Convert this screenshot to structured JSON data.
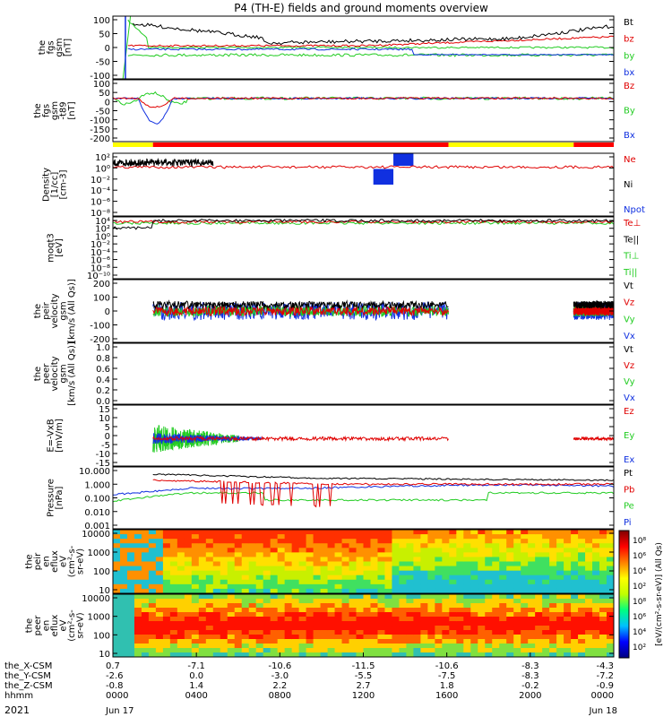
{
  "title": "P4 (TH-E) fields and ground moments overview",
  "year": "2021",
  "colors": {
    "black": "#000000",
    "red": "#e00000",
    "green": "#22cc22",
    "blue": "#1030e0",
    "yellow": "#ffff00",
    "barred": "#ff0000"
  },
  "panels": [
    {
      "ylabel": [
        "the",
        "fgs",
        "gsm",
        "[nT]"
      ],
      "ticks": [
        "100",
        "50",
        "0",
        "-50",
        "-100"
      ],
      "legend": [
        {
          "text": "Bt",
          "color": "#000000"
        },
        {
          "text": "bz",
          "color": "#e00000"
        },
        {
          "text": "by",
          "color": "#22cc22"
        },
        {
          "text": "bx",
          "color": "#1030e0"
        }
      ]
    },
    {
      "ylabel": [
        "the",
        "fgs",
        "gsm",
        "-t89",
        "[nT]"
      ],
      "ticks": [
        "100",
        "50",
        "0",
        "-50",
        "-100",
        "-150",
        "-200"
      ],
      "legend": [
        {
          "text": "Bz",
          "color": "#e00000"
        },
        {
          "text": "By",
          "color": "#22cc22"
        },
        {
          "text": "Bx",
          "color": "#1030e0"
        }
      ]
    },
    {
      "ylabel": [
        "Density",
        "[1/cc]",
        "[cm-3]"
      ],
      "ticks": [
        "10²",
        "10⁰",
        "10⁻²",
        "10⁻⁴",
        "10⁻⁶",
        "10⁻⁸"
      ],
      "legend": [
        {
          "text": "Ne",
          "color": "#e00000"
        },
        {
          "text": "Ni",
          "color": "#000000"
        },
        {
          "text": "Npot",
          "color": "#1030e0"
        }
      ]
    },
    {
      "ylabel": [
        "moqt3",
        "[eV]"
      ],
      "ticks": [
        "10⁴",
        "10²",
        "10⁰",
        "10⁻²",
        "10⁻⁴",
        "10⁻⁶",
        "10⁻⁸",
        "10⁻¹⁰"
      ],
      "legend": [
        {
          "text": "Te⊥",
          "color": "#e00000"
        },
        {
          "text": "Te||",
          "color": "#000000"
        },
        {
          "text": "Ti⊥",
          "color": "#22cc22"
        },
        {
          "text": "Ti||",
          "color": "#22cc22"
        }
      ]
    },
    {
      "ylabel": [
        "the",
        "peir",
        "velocity",
        "gsm",
        "[km/s (All Qs)]"
      ],
      "ticks": [
        "200",
        "100",
        "0",
        "-100",
        "-200"
      ],
      "legend": [
        {
          "text": "Vt",
          "color": "#000000"
        },
        {
          "text": "Vz",
          "color": "#e00000"
        },
        {
          "text": "Vy",
          "color": "#22cc22"
        },
        {
          "text": "Vx",
          "color": "#1030e0"
        }
      ]
    },
    {
      "ylabel": [
        "the",
        "peer",
        "velocity",
        "gsm",
        "[km/s (All Qs)]"
      ],
      "ticks": [
        "1.0",
        "0.8",
        "0.6",
        "0.4",
        "0.2",
        "0.0"
      ],
      "legend": [
        {
          "text": "Vt",
          "color": "#000000"
        },
        {
          "text": "Vz",
          "color": "#e00000"
        },
        {
          "text": "Vy",
          "color": "#22cc22"
        },
        {
          "text": "Vx",
          "color": "#1030e0"
        }
      ]
    },
    {
      "ylabel": [
        "E=-VxB",
        "[mV/m]"
      ],
      "ticks": [
        "15",
        "10",
        "5",
        "0",
        "-5",
        "-10",
        "-15"
      ],
      "legend": [
        {
          "text": "Ez",
          "color": "#e00000"
        },
        {
          "text": "Ey",
          "color": "#22cc22"
        },
        {
          "text": "Ex",
          "color": "#1030e0"
        }
      ]
    },
    {
      "ylabel": [
        "Pressure",
        "[nPa]"
      ],
      "ticks": [
        "10.000",
        "1.000",
        "0.100",
        "0.010",
        "0.001"
      ],
      "legend": [
        {
          "text": "Pt",
          "color": "#000000"
        },
        {
          "text": "Pb",
          "color": "#e00000"
        },
        {
          "text": "Pe",
          "color": "#22cc22"
        },
        {
          "text": "Pi",
          "color": "#1030e0"
        }
      ]
    },
    {
      "ylabel": [
        "the",
        "peir",
        "en",
        "eflux",
        "eV",
        "(cm²-s-",
        "sr-eV)"
      ],
      "ticks": [
        "10000",
        "1000",
        "100",
        "10"
      ]
    },
    {
      "ylabel": [
        "the",
        "peer",
        "en",
        "eflux",
        "eV",
        "(cm²-s-",
        "sr-eV)"
      ],
      "ticks": [
        "10000",
        "1000",
        "100",
        "10"
      ]
    }
  ],
  "colorbar": {
    "label": "[eV/(cm²-s-sr-eV)] (All Qs)",
    "ticks": [
      "10⁸",
      "10⁶",
      "10⁴",
      "10²",
      "10⁸",
      "10⁶",
      "10⁴",
      "10²"
    ]
  },
  "xaxis": {
    "rows": [
      {
        "label": "the_X-CSM",
        "values": [
          "0.7",
          "-7.1",
          "-10.6",
          "-11.5",
          "-10.6",
          "-8.3",
          "-4.3"
        ]
      },
      {
        "label": "the_Y-CSM",
        "values": [
          "-2.6",
          "0.0",
          "-3.0",
          "-5.5",
          "-7.5",
          "-8.3",
          "-7.2"
        ]
      },
      {
        "label": "the_Z-CSM",
        "values": [
          "-0.8",
          "1.4",
          "2.2",
          "2.7",
          "1.8",
          "-0.2",
          "-0.9"
        ]
      },
      {
        "label": "hhmm",
        "values": [
          "0000",
          "0400",
          "0800",
          "1200",
          "1600",
          "2000",
          "0000"
        ]
      }
    ],
    "dates": [
      {
        "text": "Jun 17",
        "col": 0
      },
      {
        "text": "Jun 18",
        "col": 6
      }
    ]
  }
}
